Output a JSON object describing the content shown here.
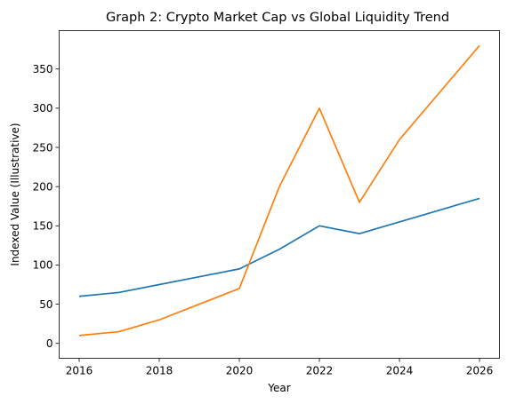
{
  "chart_data": {
    "type": "line",
    "title": "Graph 2: Crypto Market Cap vs Global Liquidity Trend",
    "xlabel": "Year",
    "ylabel": "Indexed Value (Illustrative)",
    "x_ticks": [
      "2016",
      "2018",
      "2020",
      "2022",
      "2024",
      "2026"
    ],
    "y_ticks": [
      "0",
      "50",
      "100",
      "150",
      "200",
      "250",
      "300",
      "350"
    ],
    "xlim": [
      2015.5,
      2026.5
    ],
    "ylim": [
      -19,
      399
    ],
    "grid": false,
    "legend": "none",
    "series": [
      {
        "color": "#1f77b4",
        "x": [
          2016,
          2017,
          2018,
          2019,
          2020,
          2021,
          2022,
          2023,
          2024,
          2025,
          2026
        ],
        "values": [
          60,
          65,
          75,
          85,
          95,
          120,
          150,
          140,
          155,
          170,
          185
        ]
      },
      {
        "color": "#ff7f0e",
        "x": [
          2016,
          2017,
          2018,
          2019,
          2020,
          2021,
          2022,
          2023,
          2024,
          2025,
          2026
        ],
        "values": [
          10,
          15,
          30,
          50,
          70,
          200,
          300,
          180,
          260,
          320,
          380
        ]
      }
    ]
  }
}
